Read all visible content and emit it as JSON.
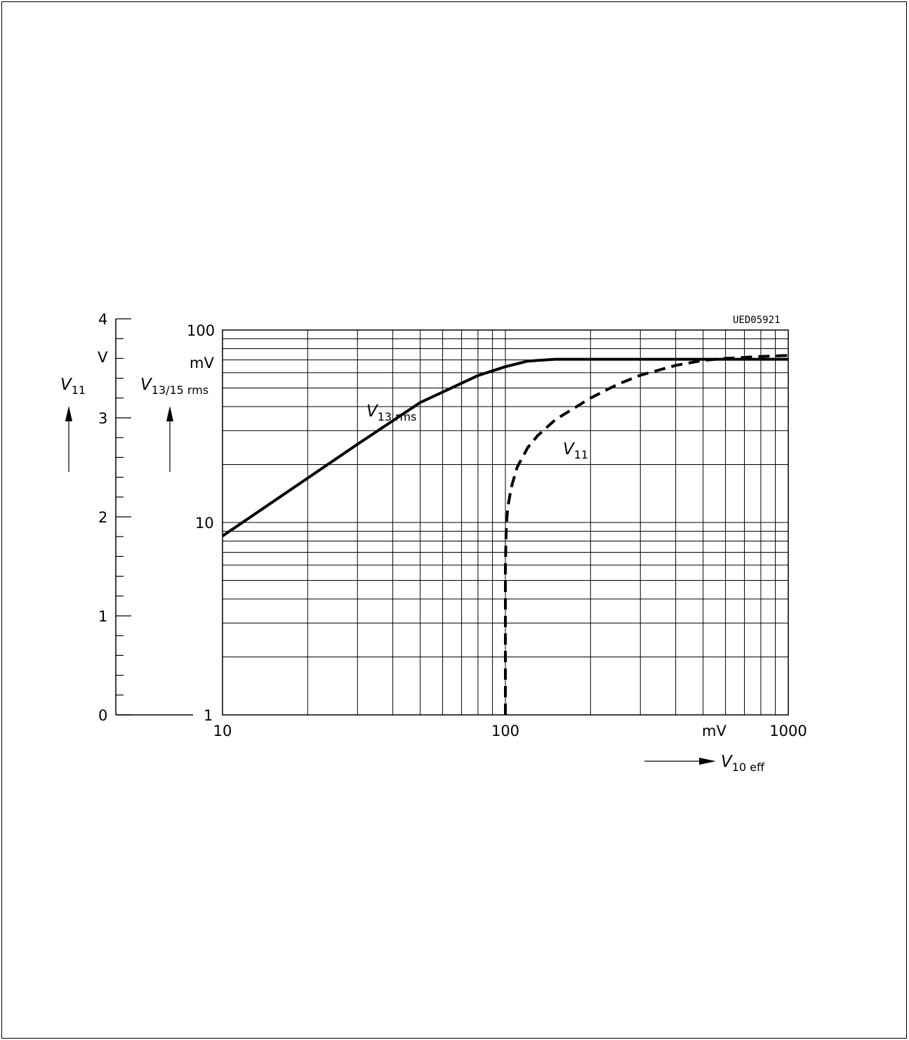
{
  "chart_data": {
    "type": "line",
    "figure_code": "UED05921",
    "x_axis": {
      "label_main": "V",
      "label_sub": "10 eff",
      "unit": "mV",
      "scale": "log",
      "range": [
        10,
        1000
      ],
      "tick_labels": [
        "10",
        "100",
        "1000"
      ]
    },
    "y_axis_left": {
      "label_main": "V",
      "label_sub": "11",
      "unit": "V",
      "scale": "linear",
      "range": [
        0,
        4
      ],
      "tick_labels": [
        "0",
        "1",
        "2",
        "3",
        "4"
      ]
    },
    "y_axis_right": {
      "label_main": "V",
      "label_sub": "13/15 rms",
      "unit": "mV",
      "scale": "log",
      "range": [
        1,
        100
      ],
      "tick_labels": [
        "1",
        "10",
        "100"
      ]
    },
    "grid": true,
    "series": [
      {
        "name_main": "V",
        "name_sub": "13 rms",
        "axis": "right",
        "style": "solid",
        "x": [
          10,
          20,
          30,
          50,
          80,
          100,
          120,
          150,
          200,
          500,
          1000
        ],
        "y": [
          8.5,
          17,
          25.5,
          42,
          58,
          64.5,
          69,
          70.5,
          70.5,
          70.5,
          70.5
        ]
      },
      {
        "name_main": "V",
        "name_sub": "11",
        "axis": "left",
        "style": "dashed",
        "x": [
          100,
          100,
          100.5,
          101,
          102,
          105,
          110,
          120,
          130,
          150,
          200,
          250,
          300,
          400,
          500,
          600,
          800,
          1000
        ],
        "y": [
          0,
          1.5,
          1.8,
          1.95,
          2.1,
          2.3,
          2.5,
          2.7,
          2.82,
          2.98,
          3.2,
          3.34,
          3.43,
          3.53,
          3.58,
          3.6,
          3.62,
          3.63
        ]
      }
    ]
  }
}
